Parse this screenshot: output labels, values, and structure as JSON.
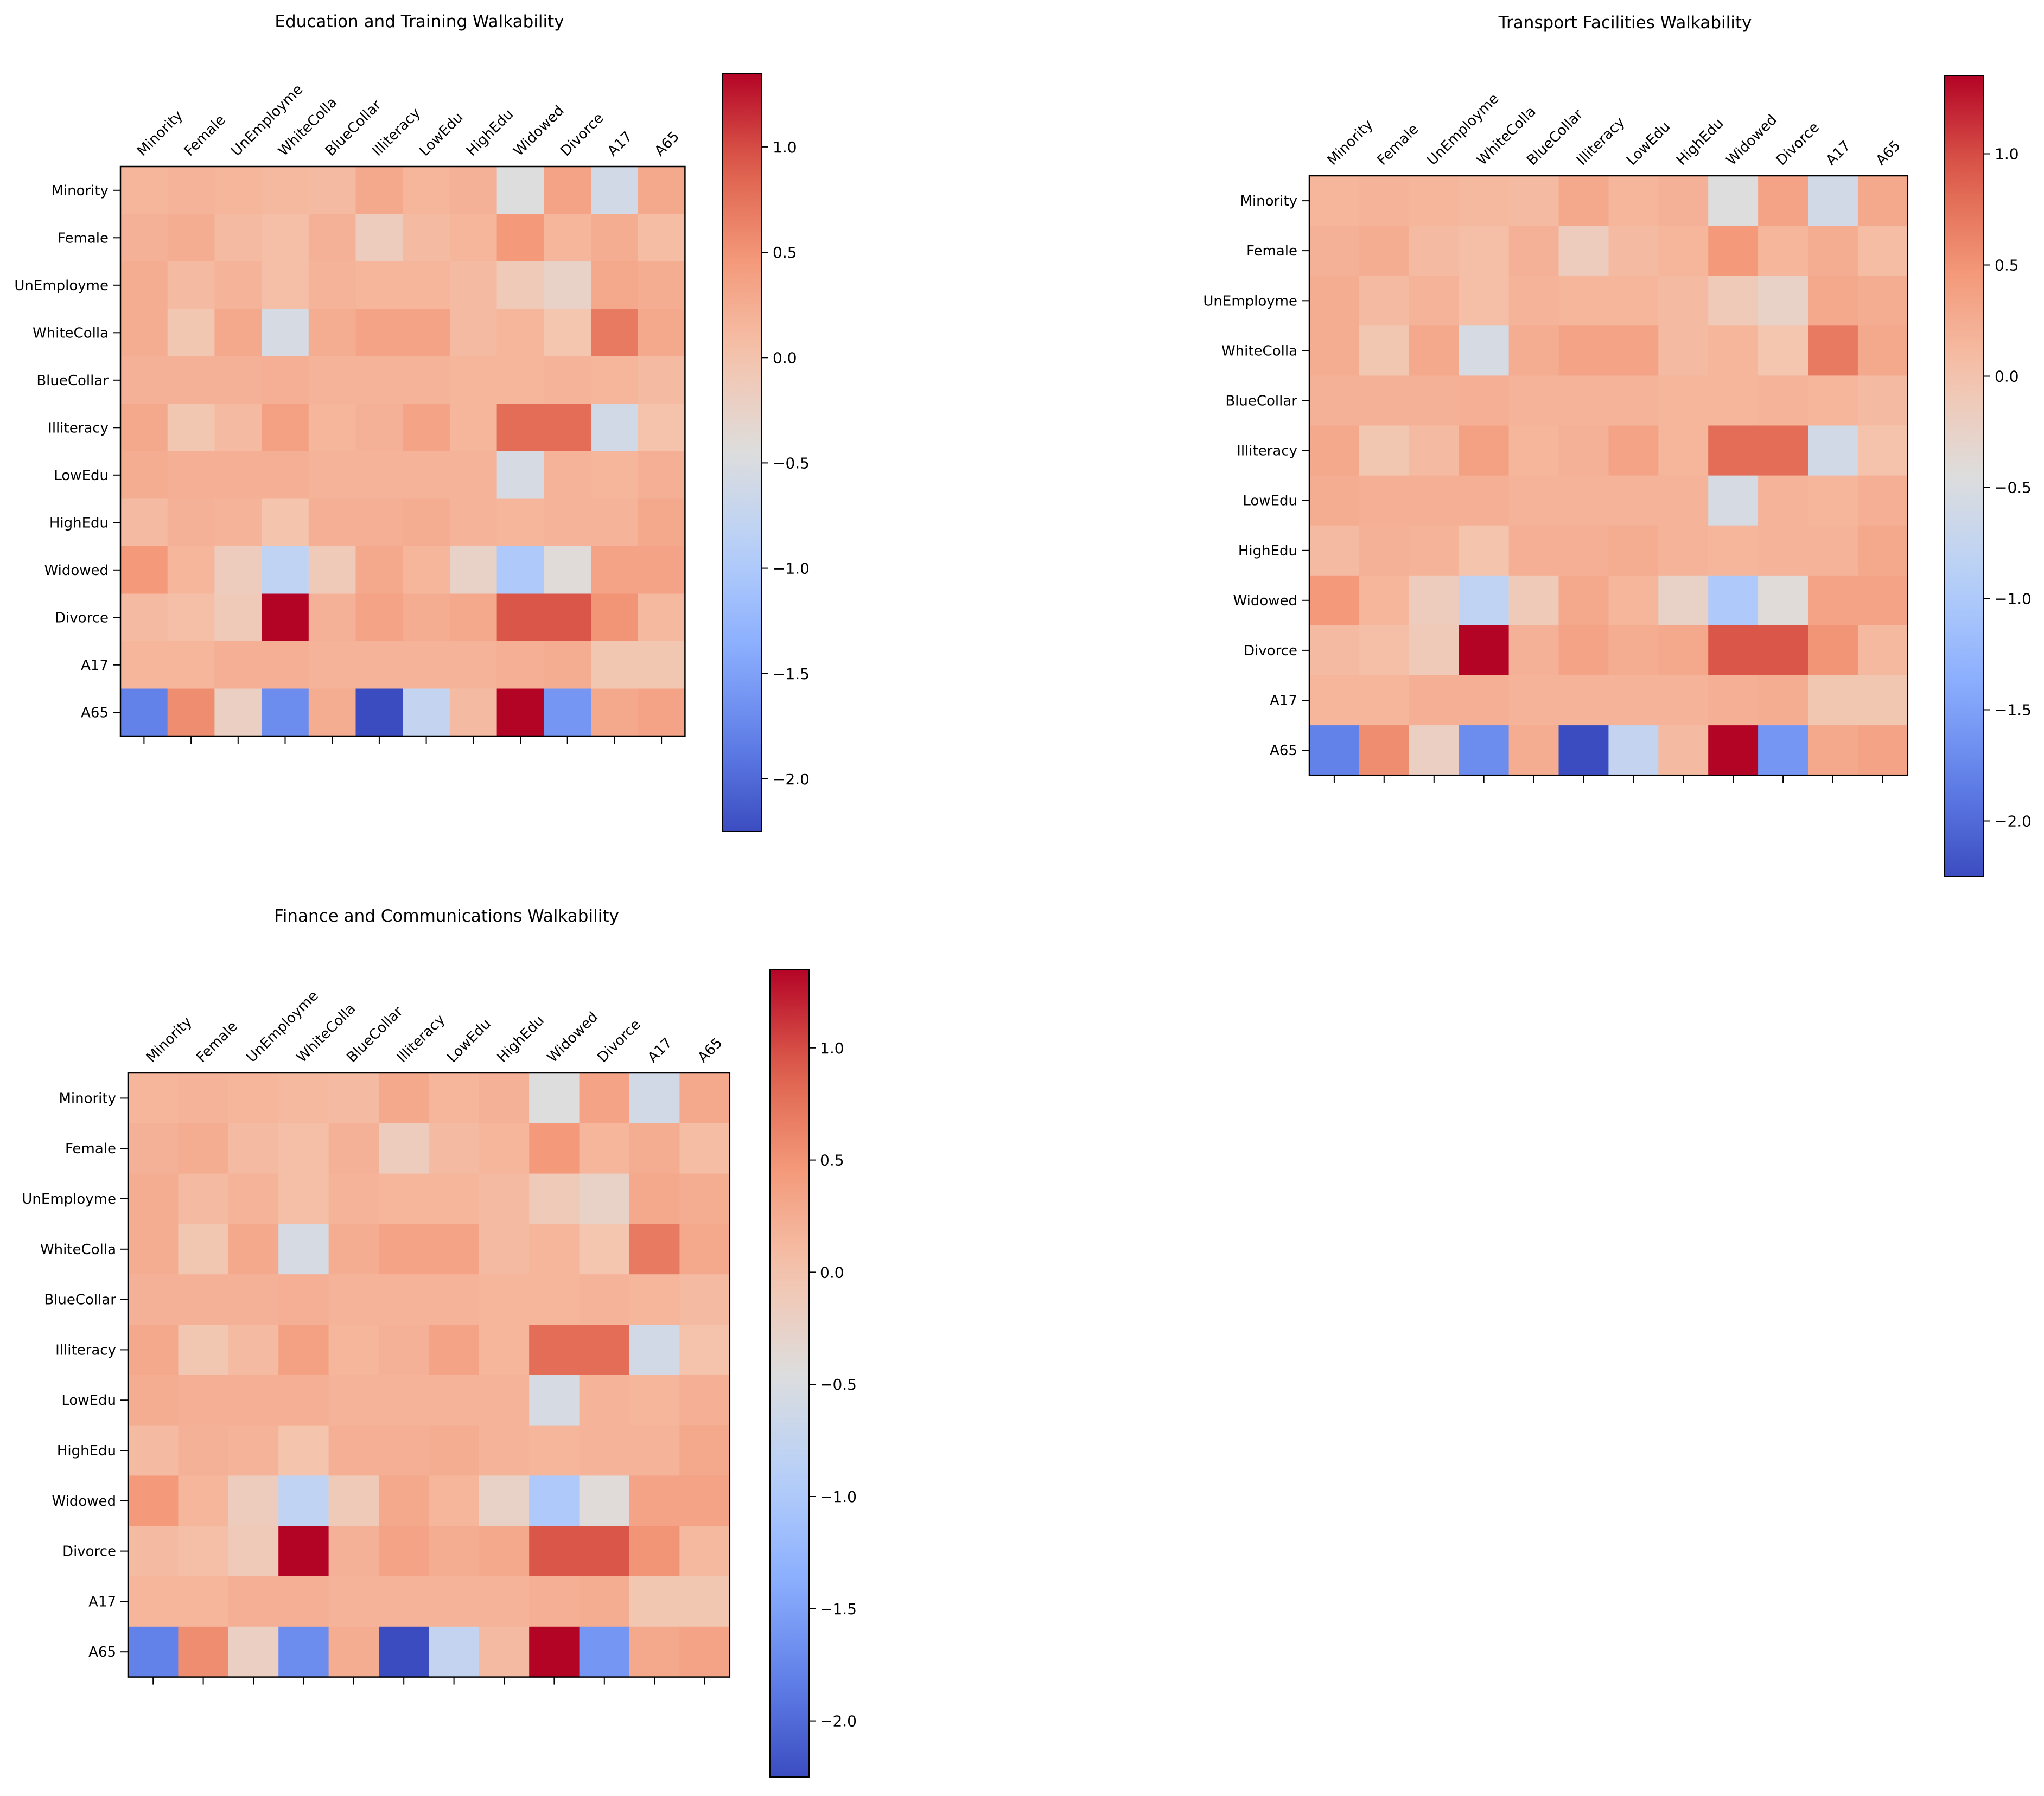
{
  "chart_data": [
    {
      "type": "heatmap",
      "title": "Education and Training Walkability",
      "xlabels": [
        "Minority",
        "Female",
        "UnEmployme",
        "WhiteColla",
        "BlueCollar",
        "Illiteracy",
        "LowEdu",
        "HighEdu",
        "Widowed",
        "Divorce",
        "A17",
        "A65"
      ],
      "ylabels": [
        "Minority",
        "Female",
        "UnEmployme",
        "WhiteColla",
        "BlueCollar",
        "Illiteracy",
        "LowEdu",
        "HighEdu",
        "Widowed",
        "Divorce",
        "A17",
        "A65"
      ],
      "colormap": "coolwarm",
      "vmin": -2.25,
      "vmax": 1.35,
      "colorbar_ticks": [
        1.0,
        0.5,
        0.0,
        -0.5,
        -1.0,
        -1.5,
        -2.0
      ],
      "values": [
        [
          0.15,
          0.18,
          0.15,
          0.12,
          0.1,
          0.3,
          0.15,
          0.2,
          -0.45,
          0.35,
          -0.6,
          0.3
        ],
        [
          0.2,
          0.25,
          0.1,
          0.05,
          0.2,
          -0.15,
          0.1,
          0.15,
          0.45,
          0.15,
          0.25,
          0.08
        ],
        [
          0.25,
          0.1,
          0.18,
          0.05,
          0.18,
          0.15,
          0.15,
          0.1,
          -0.1,
          -0.25,
          0.3,
          0.25
        ],
        [
          0.25,
          -0.05,
          0.3,
          -0.55,
          0.25,
          0.35,
          0.35,
          0.1,
          0.15,
          -0.02,
          0.7,
          0.3
        ],
        [
          0.2,
          0.2,
          0.2,
          0.22,
          0.18,
          0.18,
          0.18,
          0.15,
          0.15,
          0.18,
          0.15,
          0.1
        ],
        [
          0.3,
          -0.05,
          0.1,
          0.38,
          0.15,
          0.2,
          0.35,
          0.15,
          0.8,
          0.8,
          -0.6,
          0.02
        ],
        [
          0.25,
          0.22,
          0.22,
          0.22,
          0.18,
          0.18,
          0.18,
          0.18,
          -0.55,
          0.18,
          0.15,
          0.22
        ],
        [
          0.1,
          0.2,
          0.18,
          0.0,
          0.22,
          0.22,
          0.25,
          0.18,
          0.15,
          0.18,
          0.18,
          0.3
        ],
        [
          0.45,
          0.15,
          -0.15,
          -0.8,
          -0.1,
          0.3,
          0.15,
          -0.25,
          -1.0,
          -0.4,
          0.35,
          0.35
        ],
        [
          0.1,
          0.05,
          -0.1,
          1.35,
          0.2,
          0.35,
          0.25,
          0.3,
          0.95,
          0.95,
          0.5,
          0.12
        ],
        [
          0.15,
          0.15,
          0.22,
          0.22,
          0.18,
          0.18,
          0.18,
          0.18,
          0.22,
          0.25,
          -0.05,
          -0.05
        ],
        [
          -1.8,
          0.55,
          -0.2,
          -1.7,
          0.25,
          -2.25,
          -0.75,
          0.1,
          1.35,
          -1.6,
          0.3,
          0.35
        ]
      ]
    },
    {
      "type": "heatmap",
      "title": "Transport Facilities Walkability",
      "xlabels": [
        "Minority",
        "Female",
        "UnEmployme",
        "WhiteColla",
        "BlueCollar",
        "Illiteracy",
        "LowEdu",
        "HighEdu",
        "Widowed",
        "Divorce",
        "A17",
        "A65"
      ],
      "ylabels": [
        "Minority",
        "Female",
        "UnEmployme",
        "WhiteColla",
        "BlueCollar",
        "Illiteracy",
        "LowEdu",
        "HighEdu",
        "Widowed",
        "Divorce",
        "A17",
        "A65"
      ],
      "colormap": "coolwarm",
      "vmin": -2.25,
      "vmax": 1.35,
      "colorbar_ticks": [
        1.0,
        0.5,
        0.0,
        -0.5,
        -1.0,
        -1.5,
        -2.0
      ],
      "values": [
        [
          0.15,
          0.18,
          0.15,
          0.12,
          0.1,
          0.3,
          0.15,
          0.2,
          -0.45,
          0.35,
          -0.6,
          0.3
        ],
        [
          0.2,
          0.25,
          0.1,
          0.05,
          0.2,
          -0.15,
          0.1,
          0.15,
          0.45,
          0.15,
          0.25,
          0.08
        ],
        [
          0.25,
          0.1,
          0.18,
          0.05,
          0.18,
          0.15,
          0.15,
          0.1,
          -0.1,
          -0.25,
          0.3,
          0.25
        ],
        [
          0.25,
          -0.05,
          0.3,
          -0.55,
          0.25,
          0.35,
          0.35,
          0.1,
          0.15,
          -0.02,
          0.7,
          0.3
        ],
        [
          0.2,
          0.2,
          0.2,
          0.22,
          0.18,
          0.18,
          0.18,
          0.15,
          0.15,
          0.18,
          0.15,
          0.1
        ],
        [
          0.3,
          -0.05,
          0.1,
          0.38,
          0.15,
          0.2,
          0.35,
          0.15,
          0.8,
          0.8,
          -0.6,
          0.02
        ],
        [
          0.25,
          0.22,
          0.22,
          0.22,
          0.18,
          0.18,
          0.18,
          0.18,
          -0.55,
          0.18,
          0.15,
          0.22
        ],
        [
          0.1,
          0.2,
          0.18,
          0.0,
          0.22,
          0.22,
          0.25,
          0.18,
          0.15,
          0.18,
          0.18,
          0.3
        ],
        [
          0.45,
          0.15,
          -0.15,
          -0.8,
          -0.1,
          0.3,
          0.15,
          -0.25,
          -1.0,
          -0.4,
          0.35,
          0.35
        ],
        [
          0.1,
          0.05,
          -0.1,
          1.35,
          0.2,
          0.35,
          0.25,
          0.3,
          0.95,
          0.95,
          0.5,
          0.12
        ],
        [
          0.15,
          0.15,
          0.22,
          0.22,
          0.18,
          0.18,
          0.18,
          0.18,
          0.22,
          0.25,
          -0.05,
          -0.05
        ],
        [
          -1.8,
          0.55,
          -0.2,
          -1.7,
          0.25,
          -2.25,
          -0.75,
          0.1,
          1.35,
          -1.6,
          0.3,
          0.35
        ]
      ]
    },
    {
      "type": "heatmap",
      "title": "Finance and Communications Walkability",
      "xlabels": [
        "Minority",
        "Female",
        "UnEmployme",
        "WhiteColla",
        "BlueCollar",
        "Illiteracy",
        "LowEdu",
        "HighEdu",
        "Widowed",
        "Divorce",
        "A17",
        "A65"
      ],
      "ylabels": [
        "Minority",
        "Female",
        "UnEmployme",
        "WhiteColla",
        "BlueCollar",
        "Illiteracy",
        "LowEdu",
        "HighEdu",
        "Widowed",
        "Divorce",
        "A17",
        "A65"
      ],
      "colormap": "coolwarm",
      "vmin": -2.25,
      "vmax": 1.35,
      "colorbar_ticks": [
        1.0,
        0.5,
        0.0,
        -0.5,
        -1.0,
        -1.5,
        -2.0
      ],
      "values": [
        [
          0.15,
          0.18,
          0.15,
          0.12,
          0.1,
          0.3,
          0.15,
          0.2,
          -0.45,
          0.35,
          -0.6,
          0.3
        ],
        [
          0.2,
          0.25,
          0.1,
          0.05,
          0.2,
          -0.15,
          0.1,
          0.15,
          0.45,
          0.15,
          0.25,
          0.08
        ],
        [
          0.25,
          0.1,
          0.18,
          0.05,
          0.18,
          0.15,
          0.15,
          0.1,
          -0.1,
          -0.25,
          0.3,
          0.25
        ],
        [
          0.25,
          -0.05,
          0.3,
          -0.55,
          0.25,
          0.35,
          0.35,
          0.1,
          0.15,
          -0.02,
          0.7,
          0.3
        ],
        [
          0.2,
          0.2,
          0.2,
          0.22,
          0.18,
          0.18,
          0.18,
          0.15,
          0.15,
          0.18,
          0.15,
          0.1
        ],
        [
          0.3,
          -0.05,
          0.1,
          0.38,
          0.15,
          0.2,
          0.35,
          0.15,
          0.8,
          0.8,
          -0.6,
          0.02
        ],
        [
          0.25,
          0.22,
          0.22,
          0.22,
          0.18,
          0.18,
          0.18,
          0.18,
          -0.55,
          0.18,
          0.15,
          0.22
        ],
        [
          0.1,
          0.2,
          0.18,
          0.0,
          0.22,
          0.22,
          0.25,
          0.18,
          0.15,
          0.18,
          0.18,
          0.3
        ],
        [
          0.45,
          0.15,
          -0.15,
          -0.8,
          -0.1,
          0.3,
          0.15,
          -0.25,
          -1.0,
          -0.4,
          0.35,
          0.35
        ],
        [
          0.1,
          0.05,
          -0.1,
          1.35,
          0.2,
          0.35,
          0.25,
          0.3,
          0.95,
          0.95,
          0.5,
          0.12
        ],
        [
          0.15,
          0.15,
          0.22,
          0.22,
          0.18,
          0.18,
          0.18,
          0.18,
          0.22,
          0.25,
          -0.05,
          -0.05
        ],
        [
          -1.8,
          0.55,
          -0.2,
          -1.7,
          0.25,
          -2.25,
          -0.75,
          0.1,
          1.35,
          -1.6,
          0.3,
          0.35
        ]
      ]
    }
  ]
}
